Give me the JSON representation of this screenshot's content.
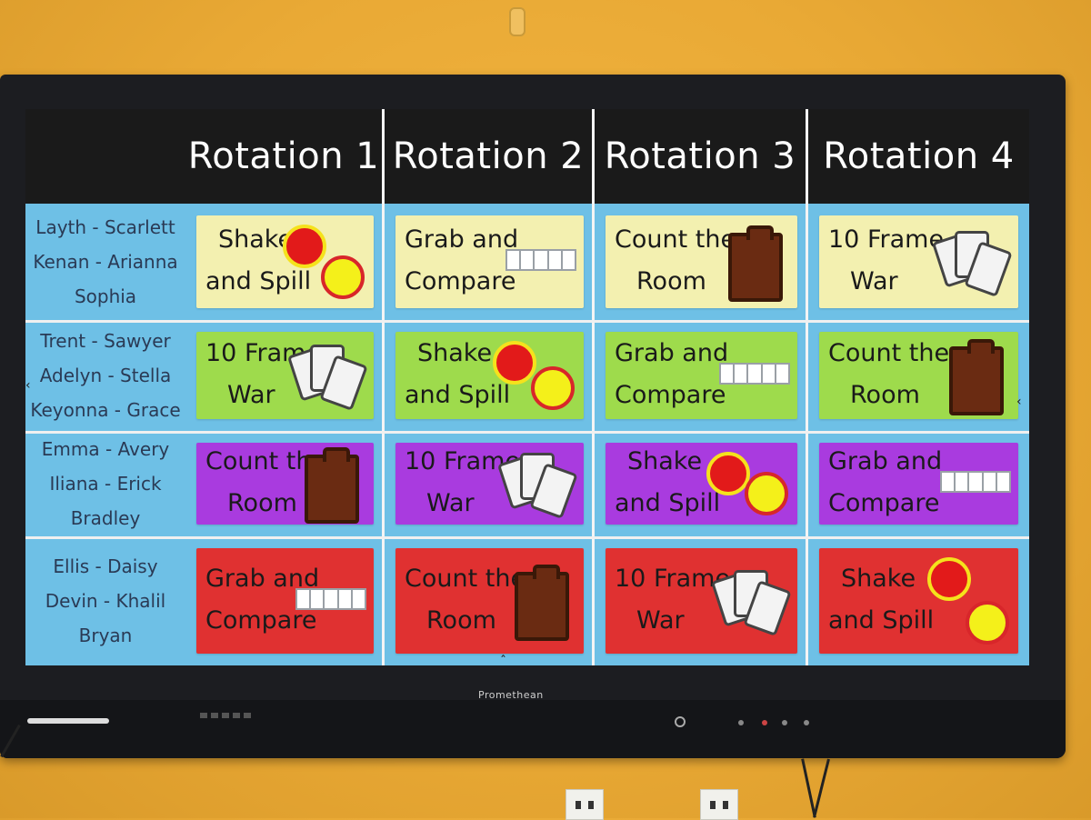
{
  "header": {
    "rotations": [
      "Rotation 1",
      "Rotation 2",
      "Rotation 3",
      "Rotation 4"
    ]
  },
  "groups": [
    {
      "lines": [
        "Layth - Scarlett",
        "Kenan - Arianna",
        "Sophia"
      ]
    },
    {
      "lines": [
        "Trent - Sawyer",
        "Adelyn - Stella",
        "Keyonna - Grace"
      ]
    },
    {
      "lines": [
        "Emma - Avery",
        "Iliana - Erick",
        "Bradley"
      ]
    },
    {
      "lines": [
        "Ellis - Daisy",
        "Devin - Khalil",
        "Bryan"
      ]
    }
  ],
  "activities": {
    "shake": [
      "Shake",
      "and Spill"
    ],
    "grab": [
      "Grab and",
      "Compare"
    ],
    "count": [
      "Count the",
      "Room"
    ],
    "war": [
      "10 Frame",
      "War"
    ]
  },
  "schedule": [
    [
      "shake",
      "grab",
      "count",
      "war"
    ],
    [
      "war",
      "shake",
      "grab",
      "count"
    ],
    [
      "count",
      "war",
      "shake",
      "grab"
    ],
    [
      "grab",
      "count",
      "war",
      "shake"
    ]
  ],
  "row_colors": [
    "#f3f0b0",
    "#9edb4c",
    "#a93bdf",
    "#e03131"
  ],
  "sticker_text": "t",
  "brand": "Promethean",
  "icons": [
    "chips-icon",
    "ten-frame-icon",
    "clipboard-icon",
    "playing-cards-icon"
  ]
}
